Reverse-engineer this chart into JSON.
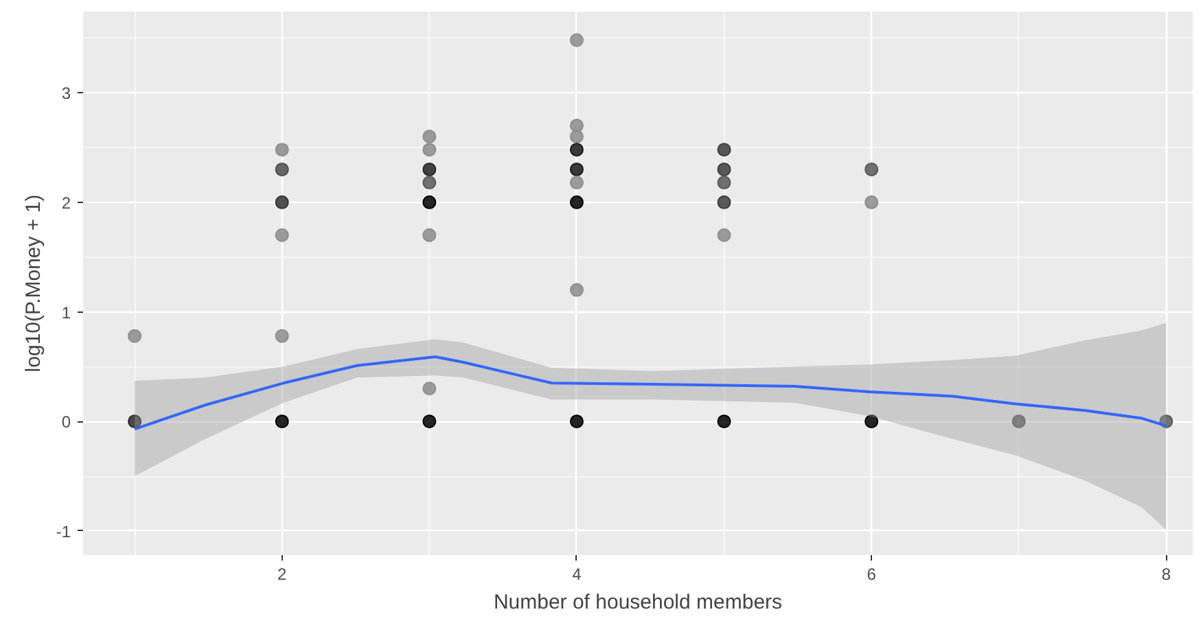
{
  "chart_data": {
    "type": "scatter",
    "xlabel": "Number of household members",
    "ylabel": "log10(P.Money + 1)",
    "xlim": [
      0.65,
      8.18
    ],
    "ylim": [
      -1.22,
      3.74
    ],
    "xticks": [
      2,
      4,
      6,
      8
    ],
    "yticks": [
      -1,
      0,
      1,
      2,
      3
    ],
    "grid": true,
    "series": [
      {
        "marker": "circle",
        "x": [
          1,
          1,
          2,
          2,
          2,
          2,
          2,
          2,
          3,
          3,
          3,
          3,
          3,
          3,
          3,
          3,
          4,
          4,
          4,
          4,
          4,
          4,
          4,
          4,
          4,
          5,
          5,
          5,
          5,
          5,
          5,
          6,
          6,
          6,
          7,
          8
        ],
        "values": [
          0.78,
          0,
          2.48,
          2.3,
          2.0,
          1.7,
          0.78,
          0,
          2.6,
          2.48,
          2.3,
          2.18,
          2.0,
          1.7,
          0.3,
          0,
          3.48,
          2.7,
          2.6,
          2.48,
          2.3,
          2.18,
          2.0,
          1.2,
          0,
          2.48,
          2.3,
          2.18,
          2.0,
          1.7,
          0,
          2.3,
          2.0,
          0,
          0,
          0
        ],
        "colors": [
          "#8c8c8c",
          "#2b2b2b",
          "#8c8c8c",
          "#4d4d4d",
          "#333333",
          "#8c8c8c",
          "#8c8c8c",
          "#000000",
          "#8c8c8c",
          "#8c8c8c",
          "#262626",
          "#595959",
          "#000000",
          "#8c8c8c",
          "#8c8c8c",
          "#000000",
          "#8c8c8c",
          "#8c8c8c",
          "#8c8c8c",
          "#1a1a1a",
          "#1a1a1a",
          "#8c8c8c",
          "#000000",
          "#8c8c8c",
          "#000000",
          "#3d3d3d",
          "#3d3d3d",
          "#595959",
          "#3d3d3d",
          "#8c8c8c",
          "#000000",
          "#595959",
          "#8c8c8c",
          "#000000",
          "#595959",
          "#595959"
        ]
      },
      {
        "type": "line",
        "color": "#3366ff",
        "x": [
          1.0,
          1.48,
          2.01,
          2.51,
          3.04,
          3.23,
          3.83,
          4.51,
          5.48,
          5.98,
          6.55,
          6.98,
          7.45,
          7.83,
          8.0
        ],
        "values": [
          -0.07,
          0.15,
          0.35,
          0.51,
          0.59,
          0.54,
          0.35,
          0.34,
          0.32,
          0.27,
          0.23,
          0.16,
          0.1,
          0.03,
          -0.04
        ],
        "lower": [
          -0.5,
          -0.16,
          0.17,
          0.4,
          0.42,
          0.4,
          0.2,
          0.2,
          0.17,
          0.05,
          -0.16,
          -0.31,
          -0.54,
          -0.78,
          -0.99
        ],
        "upper": [
          0.37,
          0.4,
          0.5,
          0.66,
          0.75,
          0.72,
          0.49,
          0.46,
          0.5,
          0.52,
          0.56,
          0.6,
          0.74,
          0.83,
          0.9
        ]
      }
    ]
  }
}
